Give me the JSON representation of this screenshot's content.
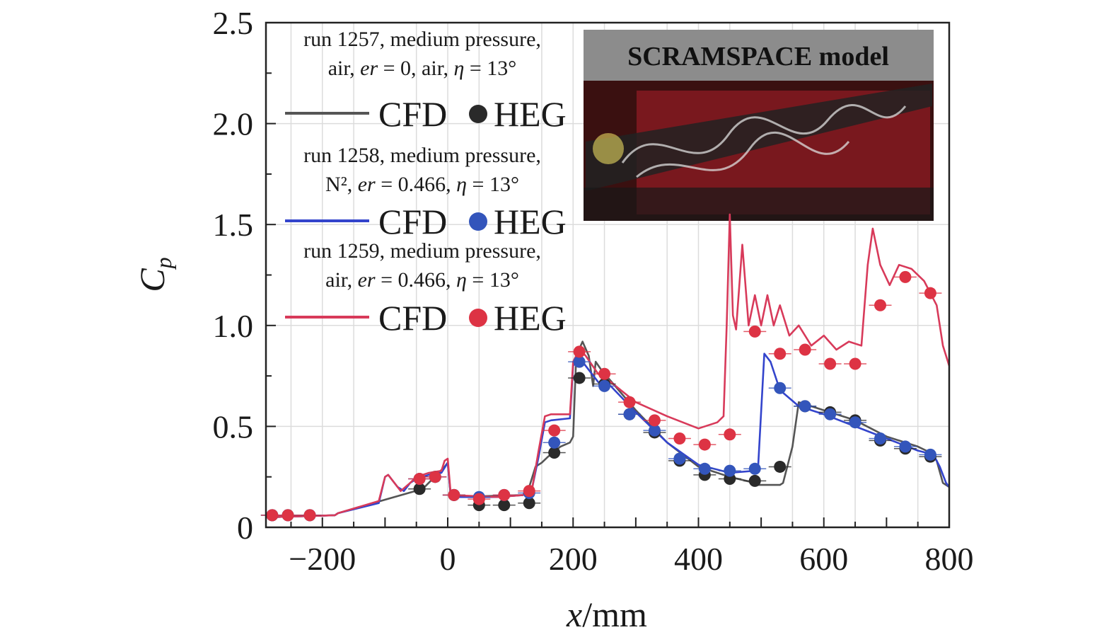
{
  "chart_data": {
    "type": "line",
    "xlabel_var": "x",
    "xlabel_unit": "/mm",
    "ylabel_main": "C",
    "ylabel_sub": "p",
    "xlim": [
      -290,
      800
    ],
    "ylim": [
      0,
      2.5
    ],
    "xticks": [
      -200,
      0,
      200,
      400,
      600,
      800
    ],
    "xtick_labels": [
      "−200",
      "0",
      "200",
      "400",
      "600",
      "800"
    ],
    "yticks": [
      0,
      0.5,
      1.0,
      1.5,
      2.0,
      2.5
    ],
    "ytick_labels": [
      "0",
      "0.5",
      "1.0",
      "1.5",
      "2.0",
      "2.5"
    ],
    "grid": true,
    "legend_placement": "top-left",
    "inset": {
      "title": "SCRAMSPACE model",
      "content": "photograph of instrumented model",
      "placement": "top-right"
    },
    "series": [
      {
        "run": [
          "run 1257, medium pressure,",
          "air, ",
          "er",
          " = 0, air, ",
          "η",
          " = 13°"
        ],
        "line_label": "CFD",
        "point_label": "HEG",
        "color": "#555555",
        "point_color": "#2a2a2a",
        "cfd": [
          [
            -285,
            0.05
          ],
          [
            -180,
            0.06
          ],
          [
            -175,
            0.07
          ],
          [
            -40,
            0.19
          ],
          [
            -5,
            0.3
          ],
          [
            0,
            0.32
          ],
          [
            5,
            0.15
          ],
          [
            120,
            0.16
          ],
          [
            130,
            0.2
          ],
          [
            140,
            0.3
          ],
          [
            150,
            0.32
          ],
          [
            160,
            0.35
          ],
          [
            180,
            0.4
          ],
          [
            195,
            0.42
          ],
          [
            200,
            0.45
          ],
          [
            205,
            0.85
          ],
          [
            215,
            0.92
          ],
          [
            225,
            0.85
          ],
          [
            232,
            0.7
          ],
          [
            236,
            0.82
          ],
          [
            245,
            0.78
          ],
          [
            300,
            0.58
          ],
          [
            350,
            0.42
          ],
          [
            400,
            0.3
          ],
          [
            450,
            0.25
          ],
          [
            490,
            0.22
          ],
          [
            495,
            0.21
          ],
          [
            530,
            0.21
          ],
          [
            535,
            0.22
          ],
          [
            550,
            0.4
          ],
          [
            560,
            0.62
          ],
          [
            600,
            0.58
          ],
          [
            650,
            0.53
          ],
          [
            700,
            0.45
          ],
          [
            750,
            0.4
          ],
          [
            770,
            0.37
          ],
          [
            780,
            0.33
          ],
          [
            790,
            0.22
          ],
          [
            800,
            0.2
          ]
        ],
        "heg": [
          [
            -280,
            0.06
          ],
          [
            -255,
            0.06
          ],
          [
            -220,
            0.06
          ],
          [
            -45,
            0.19
          ],
          [
            -20,
            0.25
          ],
          [
            10,
            0.16
          ],
          [
            50,
            0.11
          ],
          [
            90,
            0.11
          ],
          [
            130,
            0.12
          ],
          [
            170,
            0.37
          ],
          [
            210,
            0.74
          ],
          [
            250,
            0.71
          ],
          [
            290,
            0.56
          ],
          [
            330,
            0.47
          ],
          [
            370,
            0.33
          ],
          [
            410,
            0.26
          ],
          [
            450,
            0.24
          ],
          [
            490,
            0.23
          ],
          [
            530,
            0.3
          ],
          [
            570,
            0.6
          ],
          [
            610,
            0.57
          ],
          [
            650,
            0.53
          ],
          [
            690,
            0.43
          ],
          [
            730,
            0.39
          ],
          [
            770,
            0.35
          ]
        ]
      },
      {
        "run": [
          "run 1258, medium pressure,",
          "N², ",
          "er",
          " = 0.466, ",
          "η",
          " = 13°"
        ],
        "line_label": "CFD",
        "point_label": "HEG",
        "color": "#3344cc",
        "point_color": "#3355bb",
        "cfd": [
          [
            -285,
            0.05
          ],
          [
            -180,
            0.06
          ],
          [
            -175,
            0.07
          ],
          [
            -110,
            0.12
          ],
          [
            -100,
            0.25
          ],
          [
            -95,
            0.26
          ],
          [
            -80,
            0.2
          ],
          [
            -70,
            0.18
          ],
          [
            -60,
            0.22
          ],
          [
            -50,
            0.24
          ],
          [
            -30,
            0.26
          ],
          [
            -10,
            0.27
          ],
          [
            0,
            0.32
          ],
          [
            5,
            0.15
          ],
          [
            80,
            0.15
          ],
          [
            120,
            0.16
          ],
          [
            135,
            0.2
          ],
          [
            145,
            0.35
          ],
          [
            155,
            0.52
          ],
          [
            165,
            0.53
          ],
          [
            195,
            0.54
          ],
          [
            200,
            0.8
          ],
          [
            210,
            0.84
          ],
          [
            220,
            0.8
          ],
          [
            240,
            0.72
          ],
          [
            260,
            0.7
          ],
          [
            300,
            0.57
          ],
          [
            350,
            0.42
          ],
          [
            400,
            0.31
          ],
          [
            450,
            0.27
          ],
          [
            490,
            0.28
          ],
          [
            495,
            0.29
          ],
          [
            505,
            0.86
          ],
          [
            515,
            0.82
          ],
          [
            530,
            0.68
          ],
          [
            560,
            0.6
          ],
          [
            600,
            0.56
          ],
          [
            650,
            0.5
          ],
          [
            700,
            0.44
          ],
          [
            750,
            0.38
          ],
          [
            775,
            0.36
          ],
          [
            785,
            0.3
          ],
          [
            795,
            0.22
          ],
          [
            800,
            0.2
          ]
        ],
        "heg": [
          [
            -280,
            0.06
          ],
          [
            -255,
            0.06
          ],
          [
            -220,
            0.06
          ],
          [
            -45,
            0.24
          ],
          [
            -20,
            0.25
          ],
          [
            10,
            0.16
          ],
          [
            50,
            0.15
          ],
          [
            90,
            0.16
          ],
          [
            130,
            0.17
          ],
          [
            170,
            0.42
          ],
          [
            210,
            0.82
          ],
          [
            250,
            0.7
          ],
          [
            290,
            0.56
          ],
          [
            330,
            0.48
          ],
          [
            370,
            0.34
          ],
          [
            410,
            0.29
          ],
          [
            450,
            0.28
          ],
          [
            490,
            0.29
          ],
          [
            530,
            0.69
          ],
          [
            570,
            0.6
          ],
          [
            610,
            0.56
          ],
          [
            650,
            0.52
          ],
          [
            690,
            0.44
          ],
          [
            730,
            0.4
          ],
          [
            770,
            0.36
          ]
        ]
      },
      {
        "run": [
          "run 1259, medium pressure,",
          "air, ",
          "er",
          " = 0.466, ",
          "η",
          " = 13°"
        ],
        "line_label": "CFD",
        "point_label": "HEG",
        "color": "#d83a5a",
        "point_color": "#dd3344",
        "cfd": [
          [
            -285,
            0.05
          ],
          [
            -180,
            0.06
          ],
          [
            -175,
            0.07
          ],
          [
            -110,
            0.13
          ],
          [
            -100,
            0.25
          ],
          [
            -95,
            0.26
          ],
          [
            -85,
            0.22
          ],
          [
            -75,
            0.18
          ],
          [
            -60,
            0.22
          ],
          [
            -50,
            0.25
          ],
          [
            -30,
            0.27
          ],
          [
            -10,
            0.28
          ],
          [
            -5,
            0.33
          ],
          [
            0,
            0.34
          ],
          [
            5,
            0.16
          ],
          [
            80,
            0.15
          ],
          [
            120,
            0.16
          ],
          [
            135,
            0.2
          ],
          [
            145,
            0.38
          ],
          [
            155,
            0.55
          ],
          [
            165,
            0.56
          ],
          [
            195,
            0.56
          ],
          [
            200,
            0.82
          ],
          [
            210,
            0.88
          ],
          [
            220,
            0.85
          ],
          [
            240,
            0.76
          ],
          [
            260,
            0.72
          ],
          [
            300,
            0.62
          ],
          [
            350,
            0.55
          ],
          [
            400,
            0.49
          ],
          [
            430,
            0.52
          ],
          [
            440,
            0.55
          ],
          [
            445,
            1.0
          ],
          [
            450,
            1.55
          ],
          [
            455,
            1.05
          ],
          [
            460,
            0.98
          ],
          [
            470,
            1.4
          ],
          [
            480,
            1.0
          ],
          [
            490,
            1.15
          ],
          [
            500,
            1.0
          ],
          [
            510,
            1.15
          ],
          [
            520,
            1.0
          ],
          [
            530,
            1.1
          ],
          [
            545,
            0.95
          ],
          [
            560,
            1.0
          ],
          [
            580,
            0.9
          ],
          [
            600,
            0.95
          ],
          [
            620,
            0.88
          ],
          [
            640,
            0.92
          ],
          [
            660,
            0.9
          ],
          [
            670,
            1.3
          ],
          [
            678,
            1.48
          ],
          [
            690,
            1.3
          ],
          [
            705,
            1.2
          ],
          [
            720,
            1.3
          ],
          [
            740,
            1.28
          ],
          [
            760,
            1.22
          ],
          [
            780,
            1.1
          ],
          [
            790,
            0.9
          ],
          [
            800,
            0.8
          ]
        ],
        "heg": [
          [
            -280,
            0.06
          ],
          [
            -255,
            0.06
          ],
          [
            -220,
            0.06
          ],
          [
            -45,
            0.24
          ],
          [
            -20,
            0.25
          ],
          [
            10,
            0.16
          ],
          [
            50,
            0.14
          ],
          [
            90,
            0.16
          ],
          [
            130,
            0.18
          ],
          [
            170,
            0.48
          ],
          [
            210,
            0.87
          ],
          [
            250,
            0.76
          ],
          [
            290,
            0.62
          ],
          [
            330,
            0.53
          ],
          [
            370,
            0.44
          ],
          [
            410,
            0.41
          ],
          [
            450,
            0.46
          ],
          [
            490,
            0.97
          ],
          [
            530,
            0.86
          ],
          [
            570,
            0.88
          ],
          [
            610,
            0.81
          ],
          [
            650,
            0.81
          ],
          [
            690,
            1.1
          ],
          [
            730,
            1.24
          ],
          [
            770,
            1.16
          ]
        ]
      }
    ]
  }
}
